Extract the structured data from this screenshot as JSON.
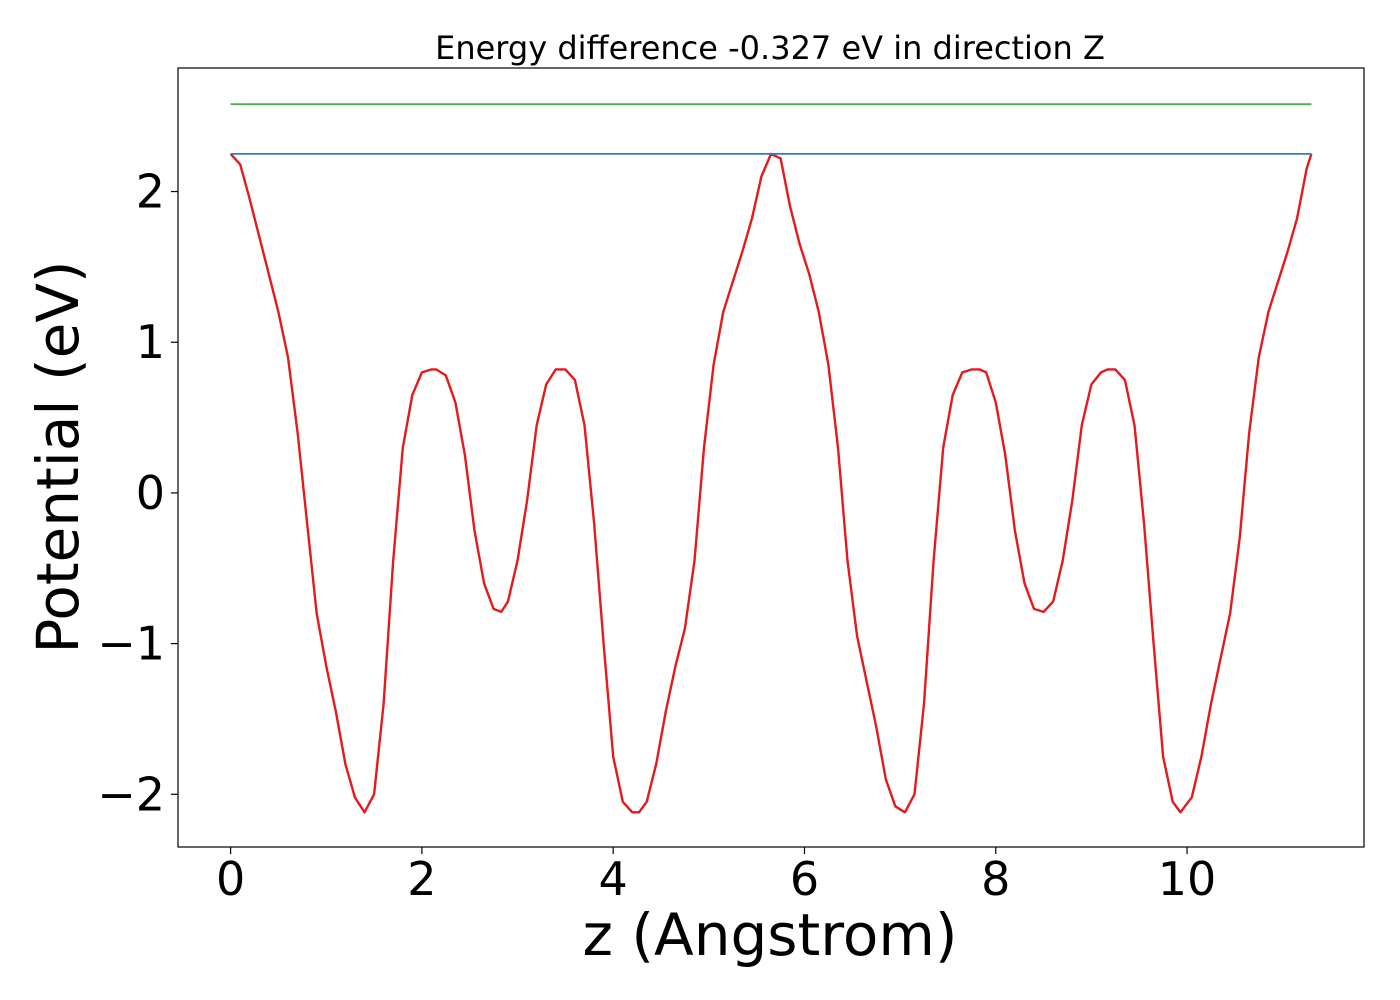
{
  "chart_data": {
    "type": "line",
    "title": "Energy difference -0.327 eV in direction Z",
    "xlabel": "z (Angstrom)",
    "ylabel": "Potential (eV)",
    "xlim": [
      -0.55,
      11.85
    ],
    "ylim": [
      -2.35,
      2.82
    ],
    "xticks": [
      0,
      2,
      4,
      6,
      8,
      10
    ],
    "xtick_labels": [
      "0",
      "2",
      "4",
      "6",
      "8",
      "10"
    ],
    "yticks": [
      -2,
      -1,
      0,
      1,
      2
    ],
    "ytick_labels": [
      "−2",
      "−1",
      "0",
      "1",
      "2"
    ],
    "grid": false,
    "series": [
      {
        "color": "#e41a1c",
        "x": [
          0,
          0.1,
          0.2,
          0.3,
          0.4,
          0.5,
          0.6,
          0.7,
          0.8,
          0.9,
          1.0,
          1.1,
          1.2,
          1.3,
          1.4,
          1.5,
          1.6,
          1.7,
          1.8,
          1.9,
          2.0,
          2.1,
          2.15,
          2.25,
          2.35,
          2.45,
          2.55,
          2.65,
          2.75,
          2.83,
          2.9,
          3.0,
          3.1,
          3.2,
          3.3,
          3.4,
          3.5,
          3.6,
          3.7,
          3.8,
          3.9,
          4.0,
          4.1,
          4.2,
          4.27,
          4.35,
          4.45,
          4.55,
          4.65,
          4.75,
          4.85,
          4.95,
          5.05,
          5.15,
          5.25,
          5.35,
          5.45,
          5.55,
          5.65,
          5.75,
          5.85,
          5.95,
          6.05,
          6.15,
          6.25,
          6.35,
          6.45,
          6.55,
          6.65,
          6.75,
          6.85,
          6.95,
          7.05,
          7.15,
          7.25,
          7.35,
          7.45,
          7.55,
          7.65,
          7.75,
          7.83,
          7.9,
          8.0,
          8.1,
          8.2,
          8.3,
          8.4,
          8.5,
          8.6,
          8.7,
          8.8,
          8.9,
          9.0,
          9.1,
          9.17,
          9.25,
          9.35,
          9.45,
          9.55,
          9.65,
          9.75,
          9.85,
          9.93,
          10.05,
          10.15,
          10.25,
          10.35,
          10.45,
          10.55,
          10.65,
          10.75,
          10.85,
          10.95,
          11.05,
          11.15,
          11.25,
          11.3
        ],
        "y": [
          2.25,
          2.18,
          1.95,
          1.7,
          1.45,
          1.2,
          0.9,
          0.4,
          -0.2,
          -0.8,
          -1.15,
          -1.45,
          -1.8,
          -2.02,
          -2.12,
          -2.0,
          -1.4,
          -0.45,
          0.3,
          0.65,
          0.8,
          0.82,
          0.82,
          0.78,
          0.6,
          0.25,
          -0.25,
          -0.6,
          -0.77,
          -0.79,
          -0.72,
          -0.45,
          -0.05,
          0.45,
          0.72,
          0.82,
          0.82,
          0.75,
          0.45,
          -0.2,
          -1.0,
          -1.75,
          -2.05,
          -2.12,
          -2.12,
          -2.05,
          -1.8,
          -1.45,
          -1.15,
          -0.9,
          -0.45,
          0.3,
          0.85,
          1.2,
          1.4,
          1.6,
          1.82,
          2.1,
          2.25,
          2.22,
          1.9,
          1.65,
          1.45,
          1.2,
          0.85,
          0.3,
          -0.45,
          -0.95,
          -1.25,
          -1.55,
          -1.9,
          -2.08,
          -2.12,
          -2.0,
          -1.4,
          -0.45,
          0.3,
          0.65,
          0.8,
          0.82,
          0.82,
          0.8,
          0.6,
          0.25,
          -0.25,
          -0.6,
          -0.77,
          -0.79,
          -0.72,
          -0.45,
          -0.05,
          0.45,
          0.72,
          0.8,
          0.82,
          0.82,
          0.75,
          0.45,
          -0.2,
          -1.0,
          -1.75,
          -2.05,
          -2.12,
          -2.02,
          -1.75,
          -1.4,
          -1.1,
          -0.8,
          -0.3,
          0.4,
          0.9,
          1.2,
          1.4,
          1.6,
          1.82,
          2.15,
          2.25
        ]
      },
      {
        "color": "#377eb8",
        "x": [
          0,
          11.3
        ],
        "y": [
          2.25,
          2.25
        ]
      },
      {
        "color": "#4daf4a",
        "x": [
          0,
          11.3
        ],
        "y": [
          2.58,
          2.58
        ]
      }
    ]
  }
}
